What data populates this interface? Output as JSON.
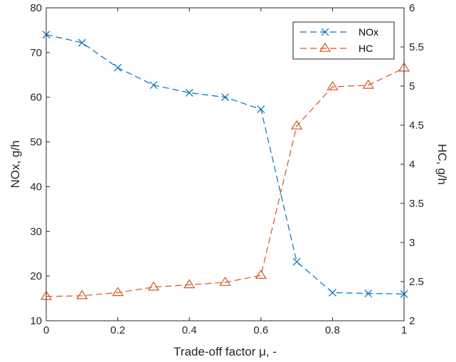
{
  "chart_data": {
    "type": "line",
    "title": "",
    "xlabel": "Trade-off factor μ, -",
    "ylabel_left": "NOx, g/h",
    "ylabel_right": "HC, g/h",
    "xlim": [
      0,
      1
    ],
    "ylim_left": [
      10,
      80
    ],
    "ylim_right": [
      2,
      6
    ],
    "x_ticks": [
      0,
      0.2,
      0.4,
      0.6,
      0.8,
      1
    ],
    "x_tick_labels": [
      "0",
      "0.2",
      "0.4",
      "0.6",
      "0.8",
      "1"
    ],
    "y_left_ticks": [
      10,
      20,
      30,
      40,
      50,
      60,
      70,
      80
    ],
    "y_left_tick_labels": [
      "10",
      "20",
      "30",
      "40",
      "50",
      "60",
      "70",
      "80"
    ],
    "y_right_ticks": [
      2,
      2.5,
      3,
      3.5,
      4,
      4.5,
      5,
      5.5,
      6
    ],
    "y_right_tick_labels": [
      "2",
      "2.5",
      "3",
      "3.5",
      "4",
      "4.5",
      "5",
      "5.5",
      "6"
    ],
    "grid": false,
    "legend_position": "top-right",
    "series": [
      {
        "name": "NOx",
        "axis": "left",
        "marker": "x",
        "line_style": "dashed",
        "color": "#0072BD",
        "x": [
          0,
          0.1,
          0.2,
          0.3,
          0.4,
          0.5,
          0.6,
          0.7,
          0.8,
          0.9,
          1.0
        ],
        "values": [
          74.0,
          72.2,
          66.6,
          62.7,
          61.0,
          60.0,
          57.3,
          23.2,
          16.3,
          16.1,
          16.0
        ]
      },
      {
        "name": "HC",
        "axis": "right",
        "marker": "triangle",
        "line_style": "dashed",
        "color": "#D95319",
        "x": [
          0,
          0.1,
          0.2,
          0.3,
          0.4,
          0.5,
          0.6,
          0.7,
          0.8,
          0.9,
          1.0
        ],
        "values": [
          2.31,
          2.32,
          2.36,
          2.43,
          2.46,
          2.49,
          2.58,
          4.49,
          4.99,
          5.01,
          5.23
        ]
      }
    ]
  }
}
